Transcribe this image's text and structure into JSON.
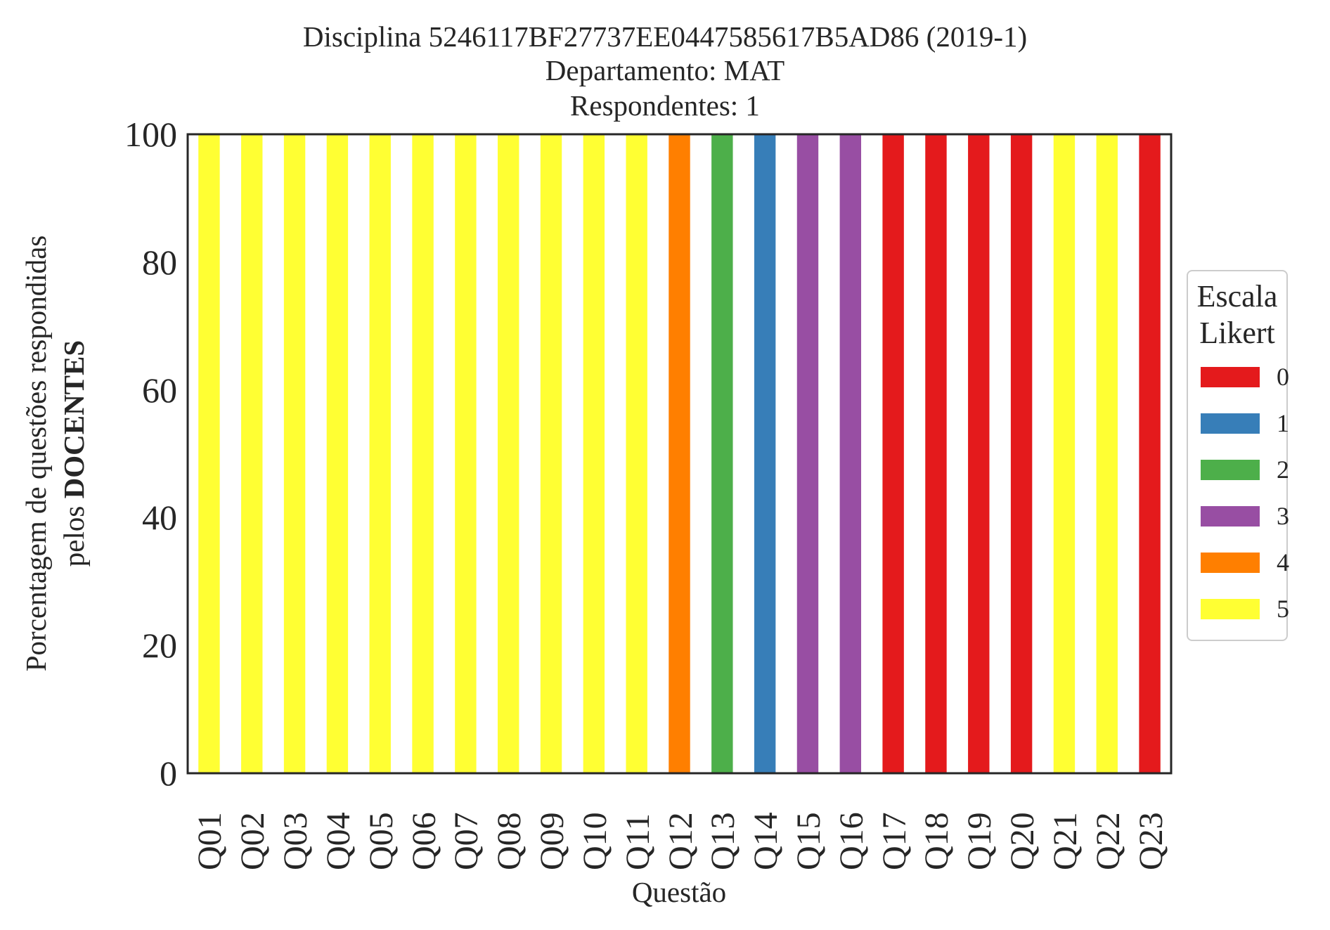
{
  "chart_data": {
    "type": "bar",
    "stacked": true,
    "title_lines": [
      "Disciplina 5246117BF27737EE0447585617B5AD86 (2019-1)",
      "Departamento: MAT",
      "Respondentes: 1"
    ],
    "xlabel": "Questão",
    "ylabel_line1": "Porcentagem de questões respondidas",
    "ylabel_line2_prefix": "pelos ",
    "ylabel_line2_bold": "DOCENTES",
    "ylim": [
      0,
      100
    ],
    "yticks": [
      "0",
      "20",
      "40",
      "60",
      "80",
      "100"
    ],
    "grid": false,
    "legend_position": "right",
    "categories": [
      "Q01",
      "Q02",
      "Q03",
      "Q04",
      "Q05",
      "Q06",
      "Q07",
      "Q08",
      "Q09",
      "Q10",
      "Q11",
      "Q12",
      "Q13",
      "Q14",
      "Q15",
      "Q16",
      "Q17",
      "Q18",
      "Q19",
      "Q20",
      "Q21",
      "Q22",
      "Q23"
    ],
    "legend_title_lines": [
      "Escala",
      "Likert"
    ],
    "series": [
      {
        "name": "0",
        "color": "#e41a1c",
        "values": [
          0,
          0,
          0,
          0,
          0,
          0,
          0,
          0,
          0,
          0,
          0,
          0,
          0,
          0,
          0,
          0,
          100,
          100,
          100,
          100,
          0,
          0,
          100
        ]
      },
      {
        "name": "1",
        "color": "#377eb8",
        "values": [
          0,
          0,
          0,
          0,
          0,
          0,
          0,
          0,
          0,
          0,
          0,
          0,
          0,
          100,
          0,
          0,
          0,
          0,
          0,
          0,
          0,
          0,
          0
        ]
      },
      {
        "name": "2",
        "color": "#4daf4a",
        "values": [
          0,
          0,
          0,
          0,
          0,
          0,
          0,
          0,
          0,
          0,
          0,
          0,
          100,
          0,
          0,
          0,
          0,
          0,
          0,
          0,
          0,
          0,
          0
        ]
      },
      {
        "name": "3",
        "color": "#984ea3",
        "values": [
          0,
          0,
          0,
          0,
          0,
          0,
          0,
          0,
          0,
          0,
          0,
          0,
          0,
          0,
          100,
          100,
          0,
          0,
          0,
          0,
          0,
          0,
          0
        ]
      },
      {
        "name": "4",
        "color": "#ff7f00",
        "values": [
          0,
          0,
          0,
          0,
          0,
          0,
          0,
          0,
          0,
          0,
          0,
          100,
          0,
          0,
          0,
          0,
          0,
          0,
          0,
          0,
          0,
          0,
          0
        ]
      },
      {
        "name": "5",
        "color": "#ffff33",
        "values": [
          100,
          100,
          100,
          100,
          100,
          100,
          100,
          100,
          100,
          100,
          100,
          0,
          0,
          0,
          0,
          0,
          0,
          0,
          0,
          0,
          100,
          100,
          0
        ]
      }
    ]
  }
}
